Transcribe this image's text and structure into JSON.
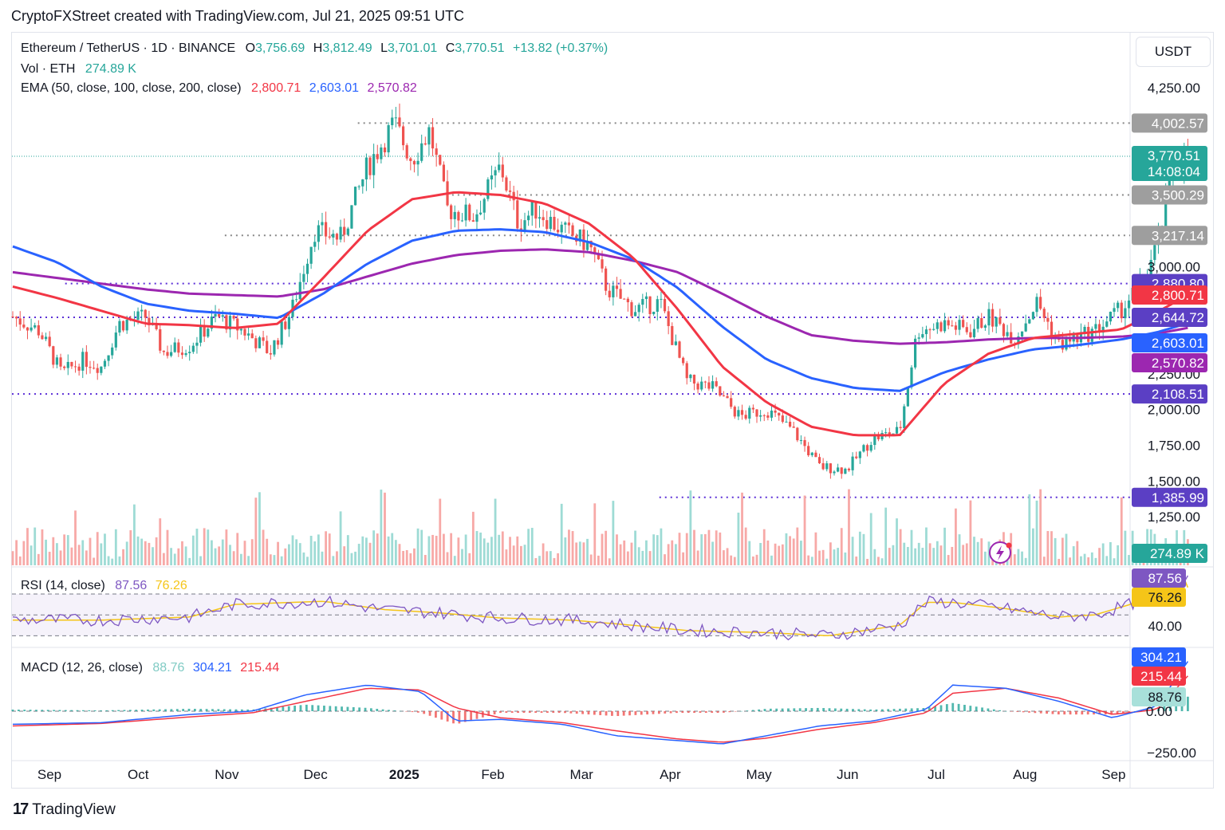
{
  "header": {
    "title": "CryptoFXStreet created with TradingView.com, Jul 21, 2025 09:51 UTC"
  },
  "legend": {
    "symbol": "Ethereum / TetherUS · 1D · BINANCE",
    "o_label": "O",
    "o_value": "3,756.69",
    "h_label": "H",
    "h_value": "3,812.49",
    "l_label": "L",
    "l_value": "3,701.01",
    "c_label": "C",
    "c_value": "3,770.51",
    "change": "+13.82 (+0.37%)",
    "vol_label": "Vol · ETH",
    "vol_value": "274.89 K",
    "ema_label": "EMA (50, close, 100, close, 200, close)",
    "ema50": "2,800.71",
    "ema100": "2,603.01",
    "ema200": "2,570.82",
    "rsi_label": "RSI (14, close)",
    "rsi_value": "87.56",
    "rsi_ma": "76.26",
    "macd_label": "MACD (12, 26, close)",
    "macd_hist": "88.76",
    "macd_line": "304.21",
    "macd_signal": "215.44"
  },
  "currency_button": "USDT",
  "footer": {
    "brand": "TradingView"
  },
  "colors": {
    "up": "#26a69a",
    "down": "#ef5350",
    "ema50": "#f23645",
    "ema100": "#2962ff",
    "ema200": "#9c27b0",
    "rsi": "#7e57c2",
    "rsi_ma": "#f5c518",
    "level_gray": "#888888",
    "level_purple": "#5b2fd6"
  },
  "chart_data": {
    "type": "candlestick",
    "symbol": "ETHUSDT",
    "interval": "1D",
    "price_axis_ticks": [
      4250,
      3000,
      2250,
      2000,
      1750,
      1500,
      1250
    ],
    "price_axis_ticks_labels": [
      "4,250.00",
      "3,000.00",
      "2,250.00",
      "2,000.00",
      "1,750.00",
      "1,500.00",
      "1,250.00"
    ],
    "ylim": [
      1250,
      4400
    ],
    "time_axis_labels": [
      "Sep",
      "Oct",
      "Nov",
      "Dec",
      "2025",
      "Feb",
      "Mar",
      "Apr",
      "May",
      "Jun",
      "Jul",
      "Aug",
      "Sep"
    ],
    "last_price": {
      "value": 3770.51,
      "label": "3,770.51",
      "countdown": "14:08:04"
    },
    "levels": [
      {
        "value": 4002.57,
        "label": "4,002.57",
        "style": "gray",
        "from_month": 3.9
      },
      {
        "value": 3500.29,
        "label": "3,500.29",
        "style": "gray",
        "from_month": 4.9
      },
      {
        "value": 3217.14,
        "label": "3,217.14",
        "style": "gray",
        "from_month": 2.4
      },
      {
        "value": 2880.8,
        "label": "2,880.80",
        "style": "purple",
        "from_month": 0.6
      },
      {
        "value": 2644.72,
        "label": "2,644.72",
        "style": "purple",
        "from_month": 0
      },
      {
        "value": 2108.51,
        "label": "2,108.51",
        "style": "purple",
        "from_month": 0
      },
      {
        "value": 1385.99,
        "label": "1,385.99",
        "style": "purple",
        "from_month": 7.3
      }
    ],
    "price_path": [
      [
        0,
        2650
      ],
      [
        0.3,
        2550
      ],
      [
        0.55,
        2250
      ],
      [
        0.8,
        2350
      ],
      [
        1.0,
        2300
      ],
      [
        1.2,
        2600
      ],
      [
        1.5,
        2650
      ],
      [
        1.7,
        2400
      ],
      [
        2.0,
        2450
      ],
      [
        2.3,
        2650
      ],
      [
        2.6,
        2550
      ],
      [
        2.9,
        2400
      ],
      [
        3.15,
        2700
      ],
      [
        3.4,
        3250
      ],
      [
        3.7,
        3200
      ],
      [
        4.0,
        3700
      ],
      [
        4.3,
        4000
      ],
      [
        4.5,
        3750
      ],
      [
        4.7,
        3950
      ],
      [
        4.9,
        3400
      ],
      [
        5.2,
        3350
      ],
      [
        5.5,
        3700
      ],
      [
        5.7,
        3300
      ],
      [
        5.9,
        3400
      ],
      [
        6.2,
        3250
      ],
      [
        6.5,
        3150
      ],
      [
        6.7,
        2850
      ],
      [
        7.0,
        2700
      ],
      [
        7.3,
        2750
      ],
      [
        7.6,
        2200
      ],
      [
        7.9,
        2150
      ],
      [
        8.2,
        1950
      ],
      [
        8.5,
        2000
      ],
      [
        8.8,
        1850
      ],
      [
        9.1,
        1600
      ],
      [
        9.4,
        1580
      ],
      [
        9.7,
        1800
      ],
      [
        10.0,
        1850
      ],
      [
        10.2,
        2550
      ],
      [
        10.5,
        2600
      ],
      [
        10.8,
        2550
      ],
      [
        11.0,
        2650
      ],
      [
        11.3,
        2500
      ],
      [
        11.55,
        2750
      ],
      [
        11.8,
        2450
      ],
      [
        12.0,
        2500
      ],
      [
        12.2,
        2550
      ],
      [
        12.5,
        2700
      ],
      [
        12.75,
        2900
      ],
      [
        12.9,
        3150
      ],
      [
        13.1,
        3700
      ],
      [
        13.25,
        3770.51
      ]
    ],
    "ema50_path": [
      [
        0,
        2860
      ],
      [
        0.5,
        2780
      ],
      [
        1.0,
        2690
      ],
      [
        1.5,
        2600
      ],
      [
        2.0,
        2590
      ],
      [
        2.5,
        2570
      ],
      [
        3.0,
        2600
      ],
      [
        3.5,
        2920
      ],
      [
        4.0,
        3250
      ],
      [
        4.5,
        3470
      ],
      [
        5.0,
        3520
      ],
      [
        5.5,
        3500
      ],
      [
        6.0,
        3440
      ],
      [
        6.5,
        3300
      ],
      [
        7.0,
        3060
      ],
      [
        7.5,
        2700
      ],
      [
        8.0,
        2300
      ],
      [
        8.5,
        2050
      ],
      [
        9.0,
        1880
      ],
      [
        9.5,
        1820
      ],
      [
        10.0,
        1820
      ],
      [
        10.5,
        2180
      ],
      [
        11.0,
        2390
      ],
      [
        11.5,
        2500
      ],
      [
        12.0,
        2530
      ],
      [
        12.5,
        2560
      ],
      [
        12.9,
        2680
      ],
      [
        13.25,
        2800.71
      ]
    ],
    "ema100_path": [
      [
        0,
        3140
      ],
      [
        0.5,
        3030
      ],
      [
        1.0,
        2860
      ],
      [
        1.5,
        2740
      ],
      [
        2.0,
        2690
      ],
      [
        2.5,
        2670
      ],
      [
        3.0,
        2640
      ],
      [
        3.5,
        2810
      ],
      [
        4.0,
        3020
      ],
      [
        4.5,
        3180
      ],
      [
        5.0,
        3250
      ],
      [
        5.5,
        3260
      ],
      [
        6.0,
        3240
      ],
      [
        6.5,
        3170
      ],
      [
        7.0,
        3050
      ],
      [
        7.5,
        2850
      ],
      [
        8.0,
        2580
      ],
      [
        8.5,
        2350
      ],
      [
        9.0,
        2220
      ],
      [
        9.5,
        2150
      ],
      [
        10.0,
        2130
      ],
      [
        10.5,
        2260
      ],
      [
        11.0,
        2350
      ],
      [
        11.5,
        2420
      ],
      [
        12.0,
        2450
      ],
      [
        12.5,
        2490
      ],
      [
        12.9,
        2540
      ],
      [
        13.25,
        2603.01
      ]
    ],
    "ema200_path": [
      [
        0,
        2960
      ],
      [
        0.5,
        2920
      ],
      [
        1.0,
        2880
      ],
      [
        1.5,
        2840
      ],
      [
        2.0,
        2810
      ],
      [
        2.5,
        2800
      ],
      [
        3.0,
        2790
      ],
      [
        3.5,
        2840
      ],
      [
        4.0,
        2930
      ],
      [
        4.5,
        3020
      ],
      [
        5.0,
        3080
      ],
      [
        5.5,
        3110
      ],
      [
        6.0,
        3120
      ],
      [
        6.5,
        3100
      ],
      [
        7.0,
        3040
      ],
      [
        7.5,
        2960
      ],
      [
        8.0,
        2810
      ],
      [
        8.5,
        2650
      ],
      [
        9.0,
        2520
      ],
      [
        9.5,
        2480
      ],
      [
        10.0,
        2460
      ],
      [
        10.5,
        2470
      ],
      [
        11.0,
        2490
      ],
      [
        11.5,
        2500
      ],
      [
        12.0,
        2500
      ],
      [
        12.5,
        2510
      ],
      [
        12.9,
        2530
      ],
      [
        13.25,
        2570.82
      ]
    ],
    "volume": {
      "last": 274.89,
      "label": "274.89 K"
    },
    "rsi": {
      "period": 14,
      "value": 87.56,
      "ma": 76.26,
      "upper": 70,
      "middle": 50,
      "lower": 30,
      "label_40": "40.00",
      "path": [
        [
          0,
          45
        ],
        [
          1,
          45
        ],
        [
          2,
          48
        ],
        [
          2.5,
          60
        ],
        [
          3.5,
          63
        ],
        [
          4.2,
          55
        ],
        [
          4.8,
          52
        ],
        [
          5.5,
          47
        ],
        [
          6.3,
          45
        ],
        [
          7.0,
          40
        ],
        [
          7.6,
          35
        ],
        [
          8.5,
          33
        ],
        [
          9.2,
          30
        ],
        [
          10.0,
          40
        ],
        [
          10.3,
          62
        ],
        [
          10.6,
          62
        ],
        [
          11.2,
          56
        ],
        [
          11.8,
          48
        ],
        [
          12.2,
          50
        ],
        [
          12.6,
          60
        ],
        [
          13.0,
          75
        ],
        [
          13.25,
          87.56
        ]
      ]
    },
    "macd": {
      "fast": 12,
      "slow": 26,
      "hist": 88.76,
      "macd": 304.21,
      "signal": 215.44,
      "zero_label": "0.00",
      "low_label": "−250.00",
      "macd_path": [
        [
          0,
          -80
        ],
        [
          1,
          -70
        ],
        [
          2,
          -20
        ],
        [
          2.7,
          0
        ],
        [
          3.3,
          100
        ],
        [
          4.0,
          160
        ],
        [
          4.6,
          120
        ],
        [
          5.0,
          -60
        ],
        [
          5.5,
          -50
        ],
        [
          6.2,
          -80
        ],
        [
          6.8,
          -150
        ],
        [
          7.5,
          -180
        ],
        [
          8.0,
          -200
        ],
        [
          8.5,
          -150
        ],
        [
          9.1,
          -90
        ],
        [
          9.7,
          -60
        ],
        [
          10.3,
          10
        ],
        [
          10.6,
          160
        ],
        [
          11.2,
          140
        ],
        [
          11.8,
          60
        ],
        [
          12.4,
          -40
        ],
        [
          12.9,
          30
        ],
        [
          13.25,
          304.21
        ]
      ],
      "signal_path": [
        [
          0,
          -90
        ],
        [
          1,
          -75
        ],
        [
          2,
          -35
        ],
        [
          2.7,
          -10
        ],
        [
          3.3,
          60
        ],
        [
          4.0,
          140
        ],
        [
          4.6,
          130
        ],
        [
          5.0,
          20
        ],
        [
          5.5,
          -40
        ],
        [
          6.2,
          -70
        ],
        [
          6.8,
          -120
        ],
        [
          7.5,
          -170
        ],
        [
          8.0,
          -190
        ],
        [
          8.5,
          -165
        ],
        [
          9.1,
          -110
        ],
        [
          9.7,
          -70
        ],
        [
          10.3,
          -10
        ],
        [
          10.6,
          110
        ],
        [
          11.2,
          140
        ],
        [
          11.8,
          80
        ],
        [
          12.4,
          -20
        ],
        [
          12.9,
          10
        ],
        [
          13.25,
          215.44
        ]
      ]
    }
  }
}
